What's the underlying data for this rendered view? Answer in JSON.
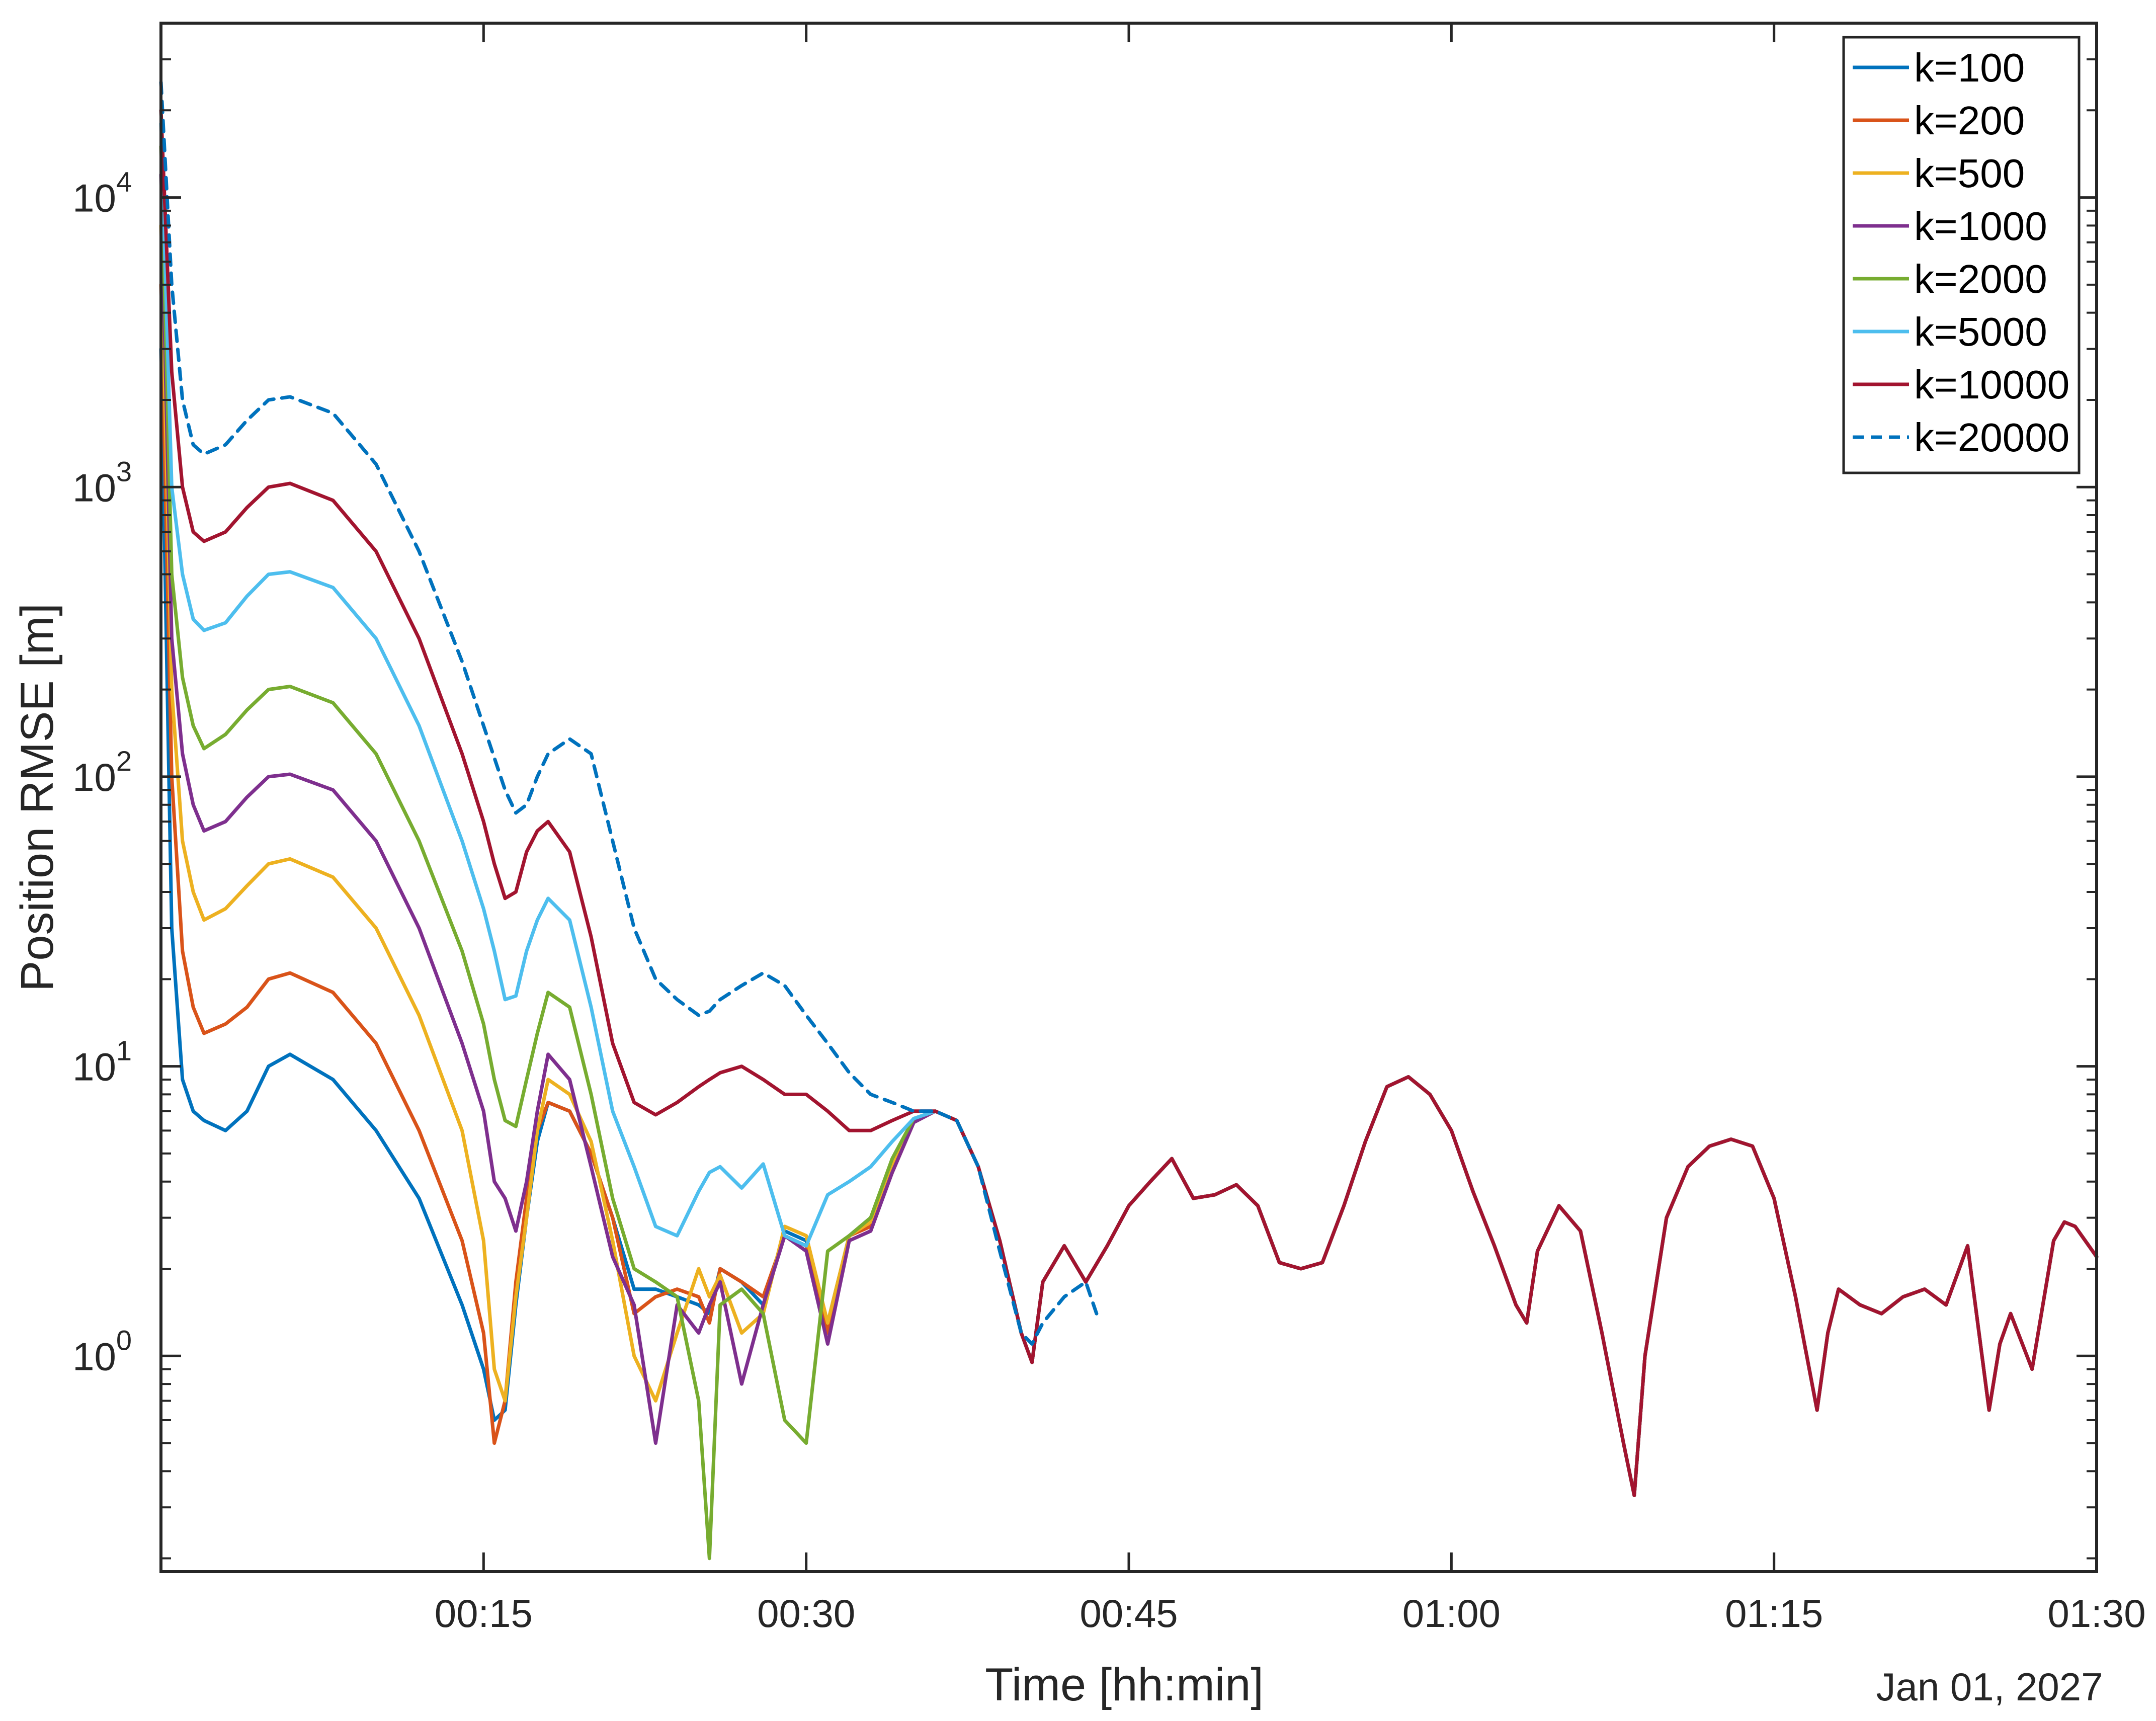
{
  "chart_data": {
    "type": "line",
    "xlabel": "Time [hh:min]",
    "ylabel": "Position RMSE [m]",
    "date_label": "Jan 01, 2027",
    "x_unit": "minutes",
    "xlim": [
      0,
      90
    ],
    "ylim": [
      0.18,
      40000
    ],
    "y_scale": "log",
    "x_ticks": [
      {
        "value": 15,
        "label": "00:15"
      },
      {
        "value": 30,
        "label": "00:30"
      },
      {
        "value": 45,
        "label": "00:45"
      },
      {
        "value": 60,
        "label": "01:00"
      },
      {
        "value": 75,
        "label": "01:15"
      },
      {
        "value": 90,
        "label": "01:30"
      }
    ],
    "y_ticks": [
      {
        "value": 1,
        "base": "10",
        "exp": "0"
      },
      {
        "value": 10,
        "base": "10",
        "exp": "1"
      },
      {
        "value": 100,
        "base": "10",
        "exp": "2"
      },
      {
        "value": 1000,
        "base": "10",
        "exp": "3"
      },
      {
        "value": 10000,
        "base": "10",
        "exp": "4"
      }
    ],
    "grid": false,
    "legend_position": "top-right",
    "series": [
      {
        "name": "k=100",
        "color": "#0072BD",
        "dash": false
      },
      {
        "name": "k=200",
        "color": "#D95319",
        "dash": false
      },
      {
        "name": "k=500",
        "color": "#EDB120",
        "dash": false
      },
      {
        "name": "k=1000",
        "color": "#7E2F8E",
        "dash": false
      },
      {
        "name": "k=2000",
        "color": "#77AC30",
        "dash": false
      },
      {
        "name": "k=5000",
        "color": "#4DBEEE",
        "dash": false
      },
      {
        "name": "k=10000",
        "color": "#A2142F",
        "dash": false
      },
      {
        "name": "k=20000",
        "color": "#0072BD",
        "dash": true
      }
    ],
    "shared_tail": {
      "x": [
        36,
        37,
        38,
        39,
        40,
        40.5,
        41,
        42,
        43,
        44,
        45,
        46,
        47,
        48,
        49,
        50,
        51,
        52,
        53,
        54,
        55,
        56,
        57,
        58,
        59,
        60,
        61,
        62,
        63,
        63.5,
        64,
        65,
        66,
        67,
        68,
        68.5,
        69,
        70,
        71,
        72,
        73,
        74,
        75,
        76,
        77,
        77.5,
        78,
        79,
        80,
        81,
        82,
        83,
        84,
        85,
        85.5,
        86,
        87,
        88,
        88.5,
        89,
        90
      ],
      "y": [
        7,
        6.5,
        4.5,
        2.5,
        1.2,
        0.95,
        1.8,
        2.4,
        1.8,
        2.4,
        3.3,
        4,
        4.8,
        3.5,
        3.6,
        3.9,
        3.3,
        2.1,
        2,
        2.1,
        3.3,
        5.5,
        8.5,
        9.2,
        8,
        6,
        3.7,
        2.4,
        1.5,
        1.3,
        2.3,
        3.3,
        2.7,
        1.2,
        0.5,
        0.33,
        1,
        3,
        4.5,
        5.3,
        5.6,
        5.3,
        3.5,
        1.6,
        0.65,
        1.2,
        1.7,
        1.5,
        1.4,
        1.6,
        1.7,
        1.5,
        2.4,
        0.65,
        1.1,
        1.4,
        0.9,
        2.5,
        2.9,
        2.8,
        2.2
      ]
    },
    "head_x": [
      0,
      0.5,
      1,
      1.5,
      2,
      3,
      4,
      5,
      6,
      8,
      10,
      12,
      14,
      15,
      15.5,
      16,
      16.5,
      17,
      17.5,
      18,
      19,
      20,
      21,
      22,
      23,
      24,
      25,
      25.5,
      26,
      27,
      28,
      29,
      30,
      31,
      32,
      33,
      34,
      35,
      36
    ],
    "head_y": {
      "k=100": [
        3000,
        30,
        9,
        7,
        6.5,
        6,
        7,
        10,
        11,
        9,
        6,
        3.5,
        1.5,
        0.9,
        0.6,
        0.65,
        1.5,
        3,
        5.5,
        7.5,
        7,
        5,
        3,
        1.7,
        1.7,
        1.6,
        1.5,
        1.4,
        2,
        1.8,
        1.5,
        2.7,
        2.5,
        1.3,
        2.6,
        3,
        4.5,
        6.5,
        7
      ],
      "k=200": [
        5000,
        100,
        25,
        16,
        13,
        14,
        16,
        20,
        21,
        18,
        12,
        6,
        2.5,
        1.2,
        0.5,
        0.7,
        1.8,
        3.5,
        6,
        7.5,
        7,
        5,
        3,
        1.4,
        1.6,
        1.7,
        1.6,
        1.3,
        2,
        1.8,
        1.6,
        2.6,
        2.4,
        1.2,
        2.6,
        2.8,
        4.3,
        6.4,
        7
      ],
      "k=500": [
        8000,
        200,
        60,
        40,
        32,
        35,
        42,
        50,
        52,
        45,
        30,
        15,
        6,
        2.5,
        0.9,
        0.7,
        1.6,
        3,
        6,
        9,
        8,
        5.5,
        2.5,
        1,
        0.7,
        1.2,
        2,
        1.6,
        1.9,
        1.2,
        1.4,
        2.8,
        2.6,
        1.3,
        2.6,
        2.9,
        4.5,
        6.5,
        7
      ],
      "k=1000": [
        12000,
        300,
        120,
        80,
        65,
        70,
        85,
        100,
        102,
        90,
        60,
        30,
        12,
        7,
        4,
        3.5,
        2.7,
        4,
        7,
        11,
        9,
        4.5,
        2.2,
        1.5,
        0.5,
        1.5,
        1.2,
        1.5,
        1.8,
        0.8,
        1.5,
        2.6,
        2.3,
        1.1,
        2.5,
        2.7,
        4.3,
        6.4,
        7
      ],
      "k=2000": [
        15000,
        500,
        220,
        150,
        125,
        140,
        170,
        200,
        205,
        180,
        120,
        60,
        25,
        14,
        9,
        6.5,
        6.2,
        9,
        13,
        18,
        16,
        8,
        3.5,
        2,
        1.8,
        1.6,
        0.7,
        0.2,
        1.5,
        1.7,
        1.4,
        0.6,
        0.5,
        2.3,
        2.6,
        3,
        4.8,
        6.6,
        7
      ],
      "k=5000": [
        18000,
        1000,
        500,
        350,
        320,
        340,
        420,
        500,
        510,
        450,
        300,
        150,
        60,
        35,
        25,
        17,
        17.5,
        25,
        32,
        38,
        32,
        16,
        7,
        4.5,
        2.8,
        2.6,
        3.7,
        4.3,
        4.5,
        3.8,
        4.6,
        2.6,
        2.4,
        3.6,
        4,
        4.5,
        5.5,
        6.6,
        7
      ],
      "k=10000": [
        20000,
        2500,
        1000,
        700,
        650,
        700,
        850,
        1000,
        1030,
        900,
        600,
        300,
        120,
        70,
        50,
        38,
        40,
        55,
        65,
        70,
        55,
        28,
        12,
        7.5,
        6.8,
        7.5,
        8.5,
        9,
        9.5,
        10,
        9,
        8,
        8,
        7,
        6,
        6,
        6.5,
        7,
        7
      ]
    },
    "k20000": {
      "x": [
        0,
        0.5,
        1,
        1.5,
        2,
        3,
        4,
        5,
        6,
        8,
        10,
        12,
        14,
        15,
        16,
        16.5,
        17,
        17.5,
        18,
        19,
        20,
        21,
        22,
        23,
        24,
        25,
        25.5,
        26,
        27,
        28,
        29,
        30,
        31,
        32,
        33,
        34,
        35,
        36,
        37,
        38,
        39,
        40,
        40.5,
        41,
        42,
        43,
        43.5
      ],
      "y": [
        25000,
        5000,
        2000,
        1400,
        1300,
        1400,
        1700,
        2000,
        2050,
        1800,
        1200,
        600,
        250,
        150,
        90,
        75,
        80,
        100,
        120,
        135,
        120,
        60,
        30,
        20,
        17,
        15,
        15.5,
        17,
        19,
        21,
        19,
        15,
        12,
        9.5,
        8,
        7.5,
        7,
        7,
        6.5,
        4.5,
        2.3,
        1.2,
        1.1,
        1.3,
        1.6,
        1.8,
        1.4
      ]
    }
  }
}
